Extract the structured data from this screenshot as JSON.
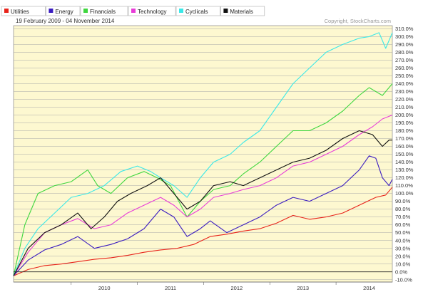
{
  "chart_data": {
    "type": "line",
    "date_range": "19 February 2009 - 04 November 2014",
    "copyright": "Copyright, StockCharts.com",
    "x_labels": [
      "2010",
      "2011",
      "2012",
      "2013",
      "2014"
    ],
    "x_label_years": [
      2010,
      2011,
      2012,
      2013,
      2014
    ],
    "x_range": [
      2009.13,
      2014.85
    ],
    "y_ticks": [
      "310.0%",
      "300.0%",
      "290.0%",
      "280.0%",
      "270.0%",
      "260.0%",
      "250.0%",
      "240.0%",
      "230.0%",
      "220.0%",
      "210.0%",
      "200.0%",
      "190.0%",
      "180.0%",
      "170.0%",
      "160.0%",
      "150.0%",
      "140.0%",
      "130.0%",
      "120.0%",
      "110.0%",
      "100.0%",
      "90.0%",
      "80.0%",
      "70.0%",
      "60.0%",
      "50.0%",
      "40.0%",
      "30.0%",
      "20.0%",
      "10.0%",
      "0.0%",
      "-10.0%"
    ],
    "y_range": [
      -13,
      314
    ],
    "zero_line": 0,
    "grid": true,
    "legend_placement": "top-left",
    "series": [
      {
        "name": "Utilities",
        "color": "#e8231a",
        "x": [
          2009.13,
          2009.35,
          2009.6,
          2009.85,
          2010.1,
          2010.35,
          2010.6,
          2010.85,
          2011.1,
          2011.35,
          2011.6,
          2011.85,
          2012.1,
          2012.35,
          2012.6,
          2012.85,
          2013.1,
          2013.35,
          2013.6,
          2013.85,
          2014.1,
          2014.35,
          2014.6,
          2014.75,
          2014.85
        ],
        "y": [
          -5,
          3,
          8,
          10,
          13,
          16,
          18,
          21,
          25,
          28,
          30,
          35,
          45,
          48,
          52,
          55,
          62,
          72,
          67,
          70,
          75,
          85,
          95,
          98,
          108
        ]
      },
      {
        "name": "Energy",
        "color": "#3a1cc0",
        "x": [
          2009.13,
          2009.35,
          2009.6,
          2009.85,
          2010.1,
          2010.35,
          2010.6,
          2010.85,
          2011.1,
          2011.35,
          2011.55,
          2011.75,
          2011.95,
          2012.1,
          2012.35,
          2012.6,
          2012.85,
          2013.1,
          2013.35,
          2013.6,
          2013.85,
          2014.1,
          2014.35,
          2014.5,
          2014.6,
          2014.7,
          2014.8,
          2014.85
        ],
        "y": [
          -5,
          15,
          28,
          35,
          45,
          30,
          35,
          42,
          55,
          80,
          70,
          45,
          55,
          65,
          50,
          60,
          70,
          85,
          95,
          90,
          100,
          110,
          130,
          148,
          145,
          120,
          110,
          118
        ]
      },
      {
        "name": "Financials",
        "color": "#3fd63f",
        "x": [
          2009.13,
          2009.3,
          2009.5,
          2009.75,
          2010.0,
          2010.25,
          2010.4,
          2010.6,
          2010.85,
          2011.1,
          2011.3,
          2011.5,
          2011.75,
          2011.95,
          2012.15,
          2012.4,
          2012.6,
          2012.85,
          2013.1,
          2013.35,
          2013.6,
          2013.85,
          2014.1,
          2014.35,
          2014.5,
          2014.7,
          2014.85
        ],
        "y": [
          -5,
          60,
          100,
          110,
          115,
          130,
          110,
          100,
          120,
          128,
          120,
          110,
          70,
          90,
          105,
          110,
          125,
          140,
          160,
          180,
          180,
          190,
          205,
          225,
          235,
          225,
          240
        ]
      },
      {
        "name": "Technology",
        "color": "#e83cd8",
        "x": [
          2009.13,
          2009.35,
          2009.6,
          2009.85,
          2010.1,
          2010.35,
          2010.6,
          2010.85,
          2011.1,
          2011.35,
          2011.55,
          2011.75,
          2011.95,
          2012.15,
          2012.4,
          2012.6,
          2012.85,
          2013.1,
          2013.35,
          2013.6,
          2013.85,
          2014.1,
          2014.35,
          2014.55,
          2014.7,
          2014.85
        ],
        "y": [
          -5,
          25,
          50,
          60,
          68,
          55,
          60,
          75,
          85,
          95,
          85,
          70,
          80,
          95,
          100,
          105,
          110,
          120,
          135,
          140,
          150,
          160,
          175,
          185,
          195,
          200
        ]
      },
      {
        "name": "Cyclicals",
        "color": "#3ae8e8",
        "x": [
          2009.13,
          2009.3,
          2009.5,
          2009.75,
          2010.0,
          2010.25,
          2010.5,
          2010.75,
          2011.0,
          2011.2,
          2011.35,
          2011.55,
          2011.75,
          2011.95,
          2012.15,
          2012.4,
          2012.6,
          2012.85,
          2013.1,
          2013.35,
          2013.6,
          2013.85,
          2014.1,
          2014.35,
          2014.5,
          2014.65,
          2014.75,
          2014.85
        ],
        "y": [
          -5,
          30,
          55,
          75,
          95,
          100,
          110,
          128,
          135,
          128,
          120,
          110,
          95,
          120,
          140,
          150,
          165,
          180,
          210,
          240,
          260,
          280,
          290,
          298,
          300,
          305,
          285,
          305
        ]
      },
      {
        "name": "Materials",
        "color": "#111111",
        "x": [
          2009.13,
          2009.35,
          2009.6,
          2009.85,
          2010.1,
          2010.3,
          2010.5,
          2010.7,
          2010.9,
          2011.15,
          2011.35,
          2011.55,
          2011.75,
          2011.95,
          2012.15,
          2012.4,
          2012.6,
          2012.85,
          2013.1,
          2013.35,
          2013.6,
          2013.85,
          2014.1,
          2014.35,
          2014.55,
          2014.7,
          2014.8,
          2014.85
        ],
        "y": [
          -5,
          30,
          50,
          60,
          75,
          55,
          70,
          90,
          100,
          110,
          120,
          100,
          80,
          90,
          110,
          115,
          110,
          120,
          130,
          140,
          145,
          155,
          170,
          180,
          175,
          160,
          168,
          168
        ]
      }
    ]
  }
}
